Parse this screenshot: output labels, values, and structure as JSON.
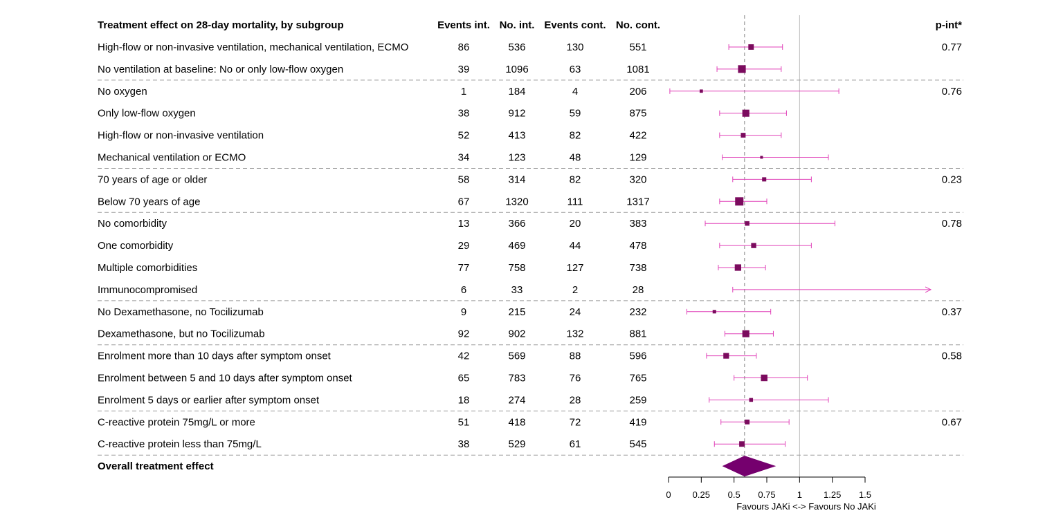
{
  "chart_data": {
    "type": "forest",
    "title": "Treatment effect on 28-day mortality, by subgroup",
    "columns": [
      "Events int.",
      "No. int.",
      "Events cont.",
      "No. cont."
    ],
    "pint_header": "p-int*",
    "rows": [
      {
        "label": "High-flow or non-invasive ventilation, mechanical ventilation, ECMO",
        "events_int": "86",
        "n_int": "536",
        "events_cont": "130",
        "n_cont": "551",
        "est": 0.63,
        "lo": 0.46,
        "hi": 0.87,
        "pint": "0.77"
      },
      {
        "label": "No ventilation at baseline: No or only low-flow oxygen",
        "events_int": "39",
        "n_int": "1096",
        "events_cont": "63",
        "n_cont": "1081",
        "est": 0.56,
        "lo": 0.37,
        "hi": 0.86,
        "pint": ""
      },
      {
        "label": "No oxygen",
        "events_int": "1",
        "n_int": "184",
        "events_cont": "4",
        "n_cont": "206",
        "est": 0.25,
        "lo": 0.01,
        "hi": 1.3,
        "pint": "0.76"
      },
      {
        "label": "Only low-flow oxygen",
        "events_int": "38",
        "n_int": "912",
        "events_cont": "59",
        "n_cont": "875",
        "est": 0.59,
        "lo": 0.39,
        "hi": 0.9,
        "pint": ""
      },
      {
        "label": "High-flow or non-invasive ventilation",
        "events_int": "52",
        "n_int": "413",
        "events_cont": "82",
        "n_cont": "422",
        "est": 0.57,
        "lo": 0.39,
        "hi": 0.86,
        "pint": ""
      },
      {
        "label": "Mechanical ventilation or ECMO",
        "events_int": "34",
        "n_int": "123",
        "events_cont": "48",
        "n_cont": "129",
        "est": 0.71,
        "lo": 0.41,
        "hi": 1.22,
        "pint": ""
      },
      {
        "label": "70 years of age or older",
        "events_int": "58",
        "n_int": "314",
        "events_cont": "82",
        "n_cont": "320",
        "est": 0.73,
        "lo": 0.49,
        "hi": 1.09,
        "pint": "0.23"
      },
      {
        "label": "Below 70 years of age",
        "events_int": "67",
        "n_int": "1320",
        "events_cont": "111",
        "n_cont": "1317",
        "est": 0.54,
        "lo": 0.39,
        "hi": 0.75,
        "pint": ""
      },
      {
        "label": "No comorbidity",
        "events_int": "13",
        "n_int": "366",
        "events_cont": "20",
        "n_cont": "383",
        "est": 0.6,
        "lo": 0.28,
        "hi": 1.27,
        "pint": "0.78"
      },
      {
        "label": "One comorbidity",
        "events_int": "29",
        "n_int": "469",
        "events_cont": "44",
        "n_cont": "478",
        "est": 0.65,
        "lo": 0.39,
        "hi": 1.09,
        "pint": ""
      },
      {
        "label": "Multiple comorbidities",
        "events_int": "77",
        "n_int": "758",
        "events_cont": "127",
        "n_cont": "738",
        "est": 0.53,
        "lo": 0.38,
        "hi": 0.74,
        "pint": ""
      },
      {
        "label": "Immunocompromised",
        "events_int": "6",
        "n_int": "33",
        "events_cont": "2",
        "n_cont": "28",
        "est": null,
        "lo": 0.49,
        "hi": 2.0,
        "arrow_right": true,
        "pint": ""
      },
      {
        "label": "No Dexamethasone, no Tocilizumab",
        "events_int": "9",
        "n_int": "215",
        "events_cont": "24",
        "n_cont": "232",
        "est": 0.35,
        "lo": 0.14,
        "hi": 0.78,
        "pint": "0.37"
      },
      {
        "label": "Dexamethasone, but no Tocilizumab",
        "events_int": "92",
        "n_int": "902",
        "events_cont": "132",
        "n_cont": "881",
        "est": 0.59,
        "lo": 0.43,
        "hi": 0.8,
        "pint": ""
      },
      {
        "label": "Enrolment more than 10 days after symptom onset",
        "events_int": "42",
        "n_int": "569",
        "events_cont": "88",
        "n_cont": "596",
        "est": 0.44,
        "lo": 0.29,
        "hi": 0.67,
        "pint": "0.58"
      },
      {
        "label": "Enrolment between 5 and 10 days after symptom onset",
        "events_int": "65",
        "n_int": "783",
        "events_cont": "76",
        "n_cont": "765",
        "est": 0.73,
        "lo": 0.5,
        "hi": 1.06,
        "pint": ""
      },
      {
        "label": "Enrolment 5 days or earlier after symptom onset",
        "events_int": "18",
        "n_int": "274",
        "events_cont": "28",
        "n_cont": "259",
        "est": 0.63,
        "lo": 0.31,
        "hi": 1.22,
        "pint": ""
      },
      {
        "label": "C-reactive protein 75mg/L or more",
        "events_int": "51",
        "n_int": "418",
        "events_cont": "72",
        "n_cont": "419",
        "est": 0.6,
        "lo": 0.4,
        "hi": 0.92,
        "pint": "0.67"
      },
      {
        "label": "C-reactive protein less than 75mg/L",
        "events_int": "38",
        "n_int": "529",
        "events_cont": "61",
        "n_cont": "545",
        "est": 0.56,
        "lo": 0.35,
        "hi": 0.89,
        "pint": ""
      }
    ],
    "group_dividers_after_rows": [
      1,
      5,
      7,
      11,
      13,
      16,
      18
    ],
    "overall": {
      "label": "Overall treatment effect",
      "est": 0.58,
      "lo": 0.41,
      "hi": 0.82
    },
    "reference_line": 1,
    "overall_reference_line": 0.58,
    "xlim": [
      0,
      1.5
    ],
    "xticks": [
      "0",
      "0.25",
      "0.5",
      "0.75",
      "1",
      "1.25",
      "1.5"
    ],
    "xlabel": "Favours JAKi <-> Favours No JAKi",
    "colors": {
      "marker": "#7b0b5e",
      "ci": "#e040b8",
      "diamond": "#75006e",
      "grid": "#999999",
      "ref": "#bbbbbb"
    }
  }
}
